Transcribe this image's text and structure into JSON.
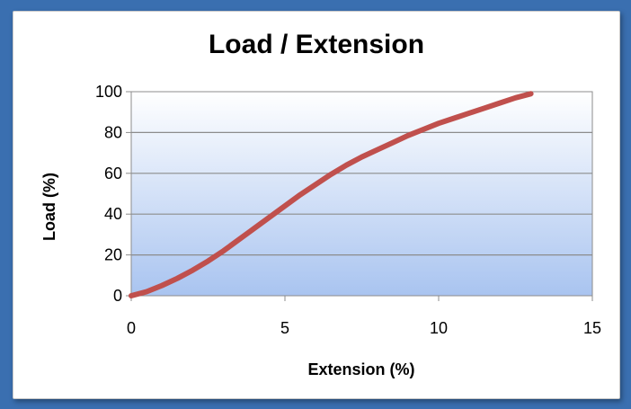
{
  "chart_data": {
    "type": "line",
    "title": "Load / Extension",
    "xlabel": "Extension (%)",
    "ylabel": "Load (%)",
    "xlim": [
      0,
      15
    ],
    "ylim": [
      0,
      100
    ],
    "x_ticks": [
      "0",
      "5",
      "10",
      "15"
    ],
    "y_ticks": [
      "0",
      "20",
      "40",
      "60",
      "80",
      "100"
    ],
    "grid": "horizontal",
    "legend": "none",
    "colors": {
      "line": "#c0504d",
      "plot_bg_top": "#ffffff",
      "plot_bg_bottom": "#a9c4f0",
      "gridline": "#8c8c8c"
    },
    "series": [
      {
        "x": [
          0,
          0.5,
          1,
          1.5,
          2,
          2.5,
          3,
          3.5,
          4,
          4.5,
          5,
          5.5,
          6,
          6.5,
          7,
          7.5,
          8,
          8.5,
          9,
          9.5,
          10,
          10.5,
          11,
          11.5,
          12,
          12.5,
          13
        ],
        "values": [
          0,
          2,
          5,
          8.5,
          12.5,
          17,
          22,
          27.5,
          33,
          38.5,
          44,
          49.5,
          54.5,
          59.5,
          64,
          68,
          71.5,
          75,
          78.5,
          81.5,
          84.5,
          87,
          89.5,
          92,
          94.5,
          97,
          99
        ]
      }
    ]
  }
}
